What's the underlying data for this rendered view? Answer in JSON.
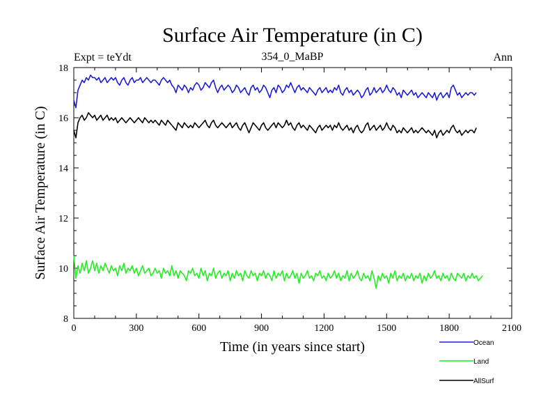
{
  "header": {
    "title": "Surface Air Temperature (in C)",
    "expt_label": "Expt = teYdt",
    "subtitle": "354_0_MaBP",
    "season": "Ann"
  },
  "colors": {
    "ocean": "#1c1cd8",
    "land": "#22ee22",
    "allsurf": "#000000",
    "axis": "#000000",
    "background": "#ffffff"
  },
  "chart_data": {
    "type": "line",
    "title": "Surface Air Temperature (in C)",
    "xlabel": "Time (in years since start)",
    "ylabel": "Surface Air Temperature (in C)",
    "xlim": [
      0,
      2100
    ],
    "ylim": [
      8,
      18
    ],
    "x_ticks": [
      0,
      300,
      600,
      900,
      1200,
      1500,
      1800,
      2100
    ],
    "x_tick_labels": [
      "0",
      "300",
      "600",
      "900",
      "1200",
      "1500",
      "1800",
      "2100"
    ],
    "y_ticks": [
      8,
      10,
      12,
      14,
      16,
      18
    ],
    "y_tick_labels": [
      "8",
      "10",
      "12",
      "14",
      "16",
      "18"
    ],
    "legend_position": "bottom-right, below plot",
    "x_step": 10,
    "x_start": 0,
    "series": [
      {
        "name": "Ocean",
        "color": "#1c1cd8",
        "values": [
          16.7,
          16.4,
          17.1,
          17.3,
          17.5,
          17.4,
          17.6,
          17.5,
          17.7,
          17.6,
          17.6,
          17.5,
          17.6,
          17.4,
          17.5,
          17.6,
          17.4,
          17.5,
          17.6,
          17.5,
          17.6,
          17.4,
          17.3,
          17.5,
          17.6,
          17.4,
          17.3,
          17.5,
          17.6,
          17.4,
          17.5,
          17.5,
          17.6,
          17.4,
          17.5,
          17.6,
          17.5,
          17.4,
          17.5,
          17.5,
          17.4,
          17.3,
          17.5,
          17.6,
          17.5,
          17.4,
          17.5,
          17.3,
          17.2,
          17.0,
          17.3,
          17.2,
          17.1,
          17.3,
          17.2,
          17.0,
          17.2,
          17.1,
          17.3,
          17.4,
          17.3,
          17.1,
          17.2,
          17.4,
          17.3,
          17.2,
          17.4,
          17.5,
          17.2,
          17.0,
          17.2,
          17.3,
          17.1,
          17.2,
          17.3,
          17.2,
          17.0,
          17.1,
          17.3,
          17.2,
          17.0,
          17.1,
          17.2,
          17.0,
          16.9,
          17.2,
          17.3,
          17.1,
          17.2,
          17.0,
          17.1,
          17.3,
          17.2,
          17.0,
          16.8,
          17.1,
          17.2,
          17.0,
          17.3,
          17.2,
          17.0,
          17.1,
          17.3,
          17.2,
          17.4,
          17.2,
          17.0,
          17.2,
          17.3,
          17.1,
          17.2,
          17.1,
          17.0,
          17.2,
          17.1,
          17.0,
          16.9,
          17.1,
          17.2,
          17.0,
          17.1,
          17.2,
          17.0,
          17.1,
          17.0,
          17.2,
          17.1,
          17.3,
          17.0,
          16.9,
          17.1,
          17.2,
          17.0,
          17.1,
          16.9,
          17.0,
          17.1,
          17.0,
          16.8,
          16.9,
          17.1,
          17.2,
          16.9,
          17.0,
          17.2,
          17.0,
          17.1,
          17.2,
          17.0,
          17.1,
          17.3,
          17.1,
          17.0,
          17.2,
          17.1,
          16.9,
          17.0,
          16.8,
          17.1,
          17.0,
          16.9,
          17.0,
          17.1,
          16.9,
          17.0,
          16.8,
          16.9,
          17.0,
          16.9,
          16.8,
          17.0,
          16.9,
          16.8,
          17.0,
          16.7,
          16.9,
          17.0,
          16.8,
          16.9,
          17.0,
          16.8,
          17.2,
          17.3,
          17.1,
          16.9,
          17.0,
          16.8,
          16.9,
          17.0,
          16.9,
          17.0,
          17.0,
          16.9,
          17.0
        ]
      },
      {
        "name": "Land",
        "color": "#22ee22",
        "values": [
          10.5,
          9.6,
          10.1,
          9.8,
          10.2,
          9.9,
          10.3,
          9.8,
          10.0,
          10.3,
          9.9,
          10.2,
          9.8,
          10.1,
          9.9,
          10.2,
          10.0,
          9.8,
          10.1,
          9.9,
          10.0,
          9.7,
          10.1,
          9.9,
          10.2,
          9.8,
          10.0,
          9.9,
          10.1,
          9.8,
          10.0,
          9.7,
          9.9,
          10.1,
          9.8,
          9.9,
          10.0,
          9.7,
          9.8,
          10.0,
          9.8,
          9.9,
          9.6,
          10.0,
          9.8,
          9.9,
          9.7,
          10.1,
          9.7,
          9.9,
          9.6,
          9.9,
          9.8,
          9.7,
          9.5,
          9.9,
          9.8,
          10.0,
          9.7,
          9.8,
          9.6,
          10.0,
          9.7,
          9.9,
          9.5,
          9.8,
          9.7,
          10.0,
          9.6,
          9.8,
          9.9,
          9.6,
          9.8,
          9.7,
          9.9,
          9.5,
          9.8,
          9.6,
          9.9,
          9.7,
          9.8,
          9.5,
          9.9,
          9.7,
          9.6,
          9.9,
          9.7,
          9.8,
          9.5,
          9.8,
          9.7,
          9.9,
          9.6,
          9.8,
          9.7,
          9.5,
          9.9,
          9.6,
          9.8,
          9.7,
          9.9,
          9.5,
          9.8,
          9.6,
          9.7,
          9.9,
          9.6,
          9.8,
          9.4,
          9.8,
          9.6,
          9.7,
          9.9,
          9.6,
          9.7,
          9.5,
          9.8,
          9.7,
          9.9,
          9.6,
          9.7,
          9.5,
          9.8,
          9.6,
          9.7,
          9.9,
          9.6,
          9.8,
          9.5,
          9.7,
          9.6,
          9.9,
          9.5,
          9.8,
          9.6,
          9.7,
          9.9,
          9.6,
          9.5,
          9.8,
          9.6,
          9.7,
          9.5,
          9.9,
          9.6,
          9.2,
          9.7,
          9.5,
          9.8,
          9.6,
          9.7,
          9.4,
          9.8,
          9.6,
          9.9,
          9.5,
          9.7,
          9.6,
          9.8,
          9.5,
          9.7,
          9.6,
          9.8,
          9.5,
          9.7,
          9.6,
          9.8,
          9.4,
          9.7,
          9.5,
          9.8,
          9.6,
          9.7,
          9.9,
          9.6,
          9.7,
          9.5,
          9.8,
          9.6,
          9.7,
          9.5,
          9.8,
          9.6,
          9.5,
          9.8,
          9.7,
          9.6,
          9.8,
          9.5,
          9.7,
          9.6,
          9.8,
          9.6,
          9.7,
          9.5,
          9.6,
          9.7
        ]
      },
      {
        "name": "AllSurf",
        "color": "#000000",
        "values": [
          15.5,
          15.2,
          15.8,
          16.0,
          16.1,
          15.9,
          16.0,
          16.2,
          16.1,
          16.0,
          16.1,
          15.9,
          16.0,
          16.1,
          15.9,
          16.0,
          16.1,
          15.9,
          16.0,
          15.9,
          16.0,
          15.8,
          15.9,
          16.0,
          15.9,
          15.8,
          15.9,
          16.0,
          15.9,
          15.8,
          15.9,
          16.0,
          15.9,
          15.8,
          16.0,
          15.9,
          15.8,
          15.9,
          15.8,
          15.9,
          15.8,
          15.7,
          15.9,
          15.8,
          15.7,
          15.9,
          15.8,
          15.7,
          15.6,
          15.5,
          15.8,
          15.7,
          15.6,
          15.8,
          15.7,
          15.6,
          15.7,
          15.6,
          15.8,
          15.7,
          15.6,
          15.7,
          15.8,
          15.9,
          15.7,
          15.6,
          15.8,
          15.9,
          15.7,
          15.6,
          15.7,
          15.8,
          15.7,
          15.6,
          15.7,
          15.8,
          15.6,
          15.7,
          15.8,
          15.6,
          15.5,
          15.7,
          15.8,
          15.6,
          15.4,
          15.6,
          15.8,
          15.7,
          15.6,
          15.5,
          15.7,
          15.8,
          15.6,
          15.5,
          15.6,
          15.7,
          15.8,
          15.6,
          15.8,
          15.7,
          15.6,
          15.7,
          15.9,
          15.7,
          15.8,
          15.6,
          15.5,
          15.7,
          15.8,
          15.6,
          15.7,
          15.6,
          15.5,
          15.7,
          15.6,
          15.5,
          15.4,
          15.6,
          15.7,
          15.5,
          15.6,
          15.7,
          15.6,
          15.7,
          15.5,
          15.7,
          15.6,
          15.8,
          15.6,
          15.5,
          15.6,
          15.7,
          15.5,
          15.6,
          15.4,
          15.6,
          15.7,
          15.5,
          15.4,
          15.5,
          15.7,
          15.8,
          15.5,
          15.6,
          15.7,
          15.5,
          15.6,
          15.7,
          15.5,
          15.6,
          15.8,
          15.6,
          15.5,
          15.7,
          15.6,
          15.4,
          15.5,
          15.4,
          15.6,
          15.5,
          15.4,
          15.5,
          15.6,
          15.4,
          15.5,
          15.4,
          15.5,
          15.6,
          15.5,
          15.4,
          15.5,
          15.4,
          15.3,
          15.5,
          15.2,
          15.4,
          15.5,
          15.3,
          15.4,
          15.5,
          15.4,
          15.6,
          15.7,
          15.5,
          15.4,
          15.5,
          15.3,
          15.4,
          15.5,
          15.4,
          15.5,
          15.5,
          15.4,
          15.6
        ]
      }
    ]
  }
}
